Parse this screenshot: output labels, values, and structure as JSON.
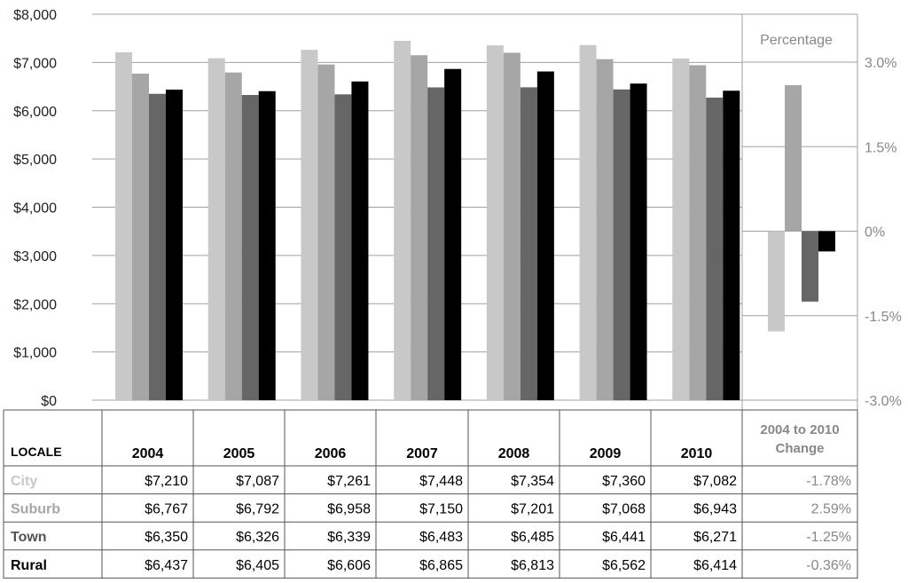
{
  "chart_data": [
    {
      "type": "bar",
      "categories": [
        "2004",
        "2005",
        "2006",
        "2007",
        "2008",
        "2009",
        "2010"
      ],
      "y_ticks": [
        "$0",
        "$1,000",
        "$2,000",
        "$3,000",
        "$4,000",
        "$5,000",
        "$6,000",
        "$7,000",
        "$8,000"
      ],
      "ylim": [
        0,
        8000
      ],
      "grid": true,
      "series": [
        {
          "name": "City",
          "color": "#c8c8c8",
          "values": [
            7210,
            7087,
            7261,
            7448,
            7354,
            7360,
            7082
          ]
        },
        {
          "name": "Suburb",
          "color": "#a6a6a6",
          "values": [
            6767,
            6792,
            6958,
            7150,
            7201,
            7068,
            6943
          ]
        },
        {
          "name": "Town",
          "color": "#666666",
          "values": [
            6350,
            6326,
            6339,
            6483,
            6485,
            6441,
            6271
          ]
        },
        {
          "name": "Rural",
          "color": "#000000",
          "values": [
            6437,
            6405,
            6606,
            6865,
            6813,
            6562,
            6414
          ]
        }
      ]
    },
    {
      "type": "bar",
      "title": "Percentage",
      "categories": [
        "City",
        "Suburb",
        "Town",
        "Rural"
      ],
      "values": [
        -1.78,
        2.59,
        -1.25,
        -0.36
      ],
      "y_ticks": [
        "3.0%",
        "1.5%",
        "0%",
        "-1.5%",
        "-3.0%"
      ],
      "ylim": [
        -3.0,
        3.0
      ]
    }
  ],
  "table": {
    "header_locale": "LOCALE",
    "years": [
      "2004",
      "2005",
      "2006",
      "2007",
      "2008",
      "2009",
      "2010"
    ],
    "change_header_line1": "2004 to 2010",
    "change_header_line2": "Change",
    "rows": [
      {
        "label": "City",
        "values": [
          "$7,210",
          "$7,087",
          "$7,261",
          "$7,448",
          "$7,354",
          "$7,360",
          "$7,082"
        ],
        "change": "-1.78%"
      },
      {
        "label": "Suburb",
        "values": [
          "$6,767",
          "$6,792",
          "$6,958",
          "$7,150",
          "$7,201",
          "$7,068",
          "$6,943"
        ],
        "change": "2.59%"
      },
      {
        "label": "Town",
        "values": [
          "$6,350",
          "$6,326",
          "$6,339",
          "$6,483",
          "$6,485",
          "$6,441",
          "$6,271"
        ],
        "change": "-1.25%"
      },
      {
        "label": "Rural",
        "values": [
          "$6,437",
          "$6,405",
          "$6,606",
          "$6,865",
          "$6,813",
          "$6,562",
          "$6,414"
        ],
        "change": "-0.36%"
      }
    ]
  }
}
